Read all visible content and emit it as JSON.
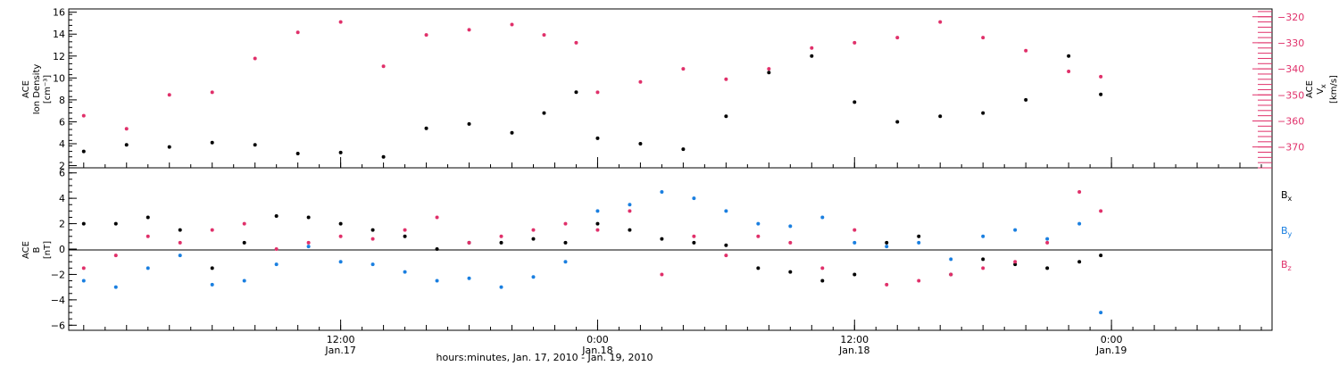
{
  "chart_data": [
    {
      "type": "scatter",
      "panel": "top",
      "ylabel_lines": [
        "ACE",
        "Ion Density",
        "[cm⁻³]"
      ],
      "ylim": [
        1.8,
        16.3
      ],
      "yticks": [
        2,
        4,
        6,
        8,
        10,
        12,
        14,
        16
      ],
      "y2label_lines": [
        "ACE",
        "V",
        "[km/s]"
      ],
      "y2label_sub": "x",
      "y2lim": [
        -378,
        -317
      ],
      "y2ticks": [
        -320,
        -330,
        -340,
        -350,
        -360,
        -370
      ],
      "x": [
        0,
        2,
        4,
        6,
        8,
        10,
        12,
        14,
        16,
        18,
        20,
        21.5,
        23,
        24,
        26,
        28,
        30,
        32,
        34,
        36,
        38,
        40,
        42,
        44,
        46,
        47.5
      ],
      "xlim": [
        -0.7,
        55.5
      ],
      "series": [
        {
          "name": "",
          "axis": "left",
          "color": "#000000",
          "values": [
            3.3,
            3.9,
            3.7,
            4.1,
            3.9,
            3.1,
            3.2,
            2.8,
            5.4,
            5.8,
            5.0,
            6.8,
            8.7,
            4.5,
            4.0,
            3.5,
            6.5,
            10.5,
            12.0,
            7.8,
            6.0,
            6.5,
            6.8,
            8.0,
            12.0,
            8.5
          ]
        },
        {
          "name": "",
          "axis": "right",
          "color": "#e0306a",
          "values": [
            -358,
            -363,
            -350,
            -349,
            -336,
            -326,
            -322,
            -339,
            -327,
            -325,
            -323,
            -327,
            -330,
            -349,
            -345,
            -340,
            -344,
            -340,
            -332,
            -330,
            -328,
            -322,
            -328,
            -333,
            -341,
            -343
          ]
        }
      ]
    },
    {
      "type": "scatter",
      "panel": "bottom",
      "ylabel_lines": [
        "ACE",
        "B",
        "[nT]"
      ],
      "ylim": [
        -6.4,
        6.4
      ],
      "yticks": [
        6,
        4,
        2,
        0,
        -2,
        -4,
        -6
      ],
      "x": [
        0,
        1.5,
        3,
        4.5,
        6,
        7.5,
        9,
        10.5,
        12,
        13.5,
        15,
        16.5,
        18,
        19.5,
        21,
        22.5,
        24,
        25.5,
        27,
        28.5,
        30,
        31.5,
        33,
        34.5,
        36,
        37.5,
        39,
        40.5,
        42,
        43.5,
        45,
        46.5,
        47.5
      ],
      "xlim": [
        -0.7,
        55.5
      ],
      "series": [
        {
          "name": "B",
          "sub": "x",
          "color": "#000000",
          "values": [
            2.0,
            2.0,
            2.5,
            1.5,
            -1.5,
            0.5,
            2.6,
            2.5,
            2.0,
            1.5,
            1.0,
            0.0,
            0.5,
            0.5,
            0.8,
            0.5,
            2.0,
            1.5,
            0.8,
            0.5,
            0.3,
            -1.5,
            -1.8,
            -2.5,
            -2.0,
            0.5,
            1.0,
            -2.0,
            -0.8,
            -1.2,
            -1.5,
            -1.0,
            -0.5
          ]
        },
        {
          "name": "B",
          "sub": "y",
          "color": "#1a7fe0",
          "values": [
            -2.5,
            -3.0,
            -1.5,
            -0.5,
            -2.8,
            -2.5,
            -1.2,
            0.2,
            -1.0,
            -1.2,
            -1.8,
            -2.5,
            -2.3,
            -3.0,
            -2.2,
            -1.0,
            3.0,
            3.5,
            4.5,
            4.0,
            3.0,
            2.0,
            1.8,
            2.5,
            0.5,
            0.2,
            0.5,
            -0.8,
            1.0,
            1.5,
            0.8,
            2.0,
            -5.0
          ]
        },
        {
          "name": "B",
          "sub": "z",
          "color": "#e0306a",
          "values": [
            -1.5,
            -0.5,
            1.0,
            0.5,
            1.5,
            2.0,
            0.0,
            0.5,
            1.0,
            0.8,
            1.5,
            2.5,
            0.5,
            1.0,
            1.5,
            2.0,
            1.5,
            3.0,
            -2.0,
            1.0,
            -0.5,
            1.0,
            0.5,
            -1.5,
            1.5,
            -2.8,
            -2.5,
            -2.0,
            -1.5,
            -1.0,
            0.5,
            4.5,
            3.0
          ]
        }
      ]
    }
  ],
  "x_axis": {
    "ticks": [
      {
        "x": 12,
        "time": "12:00",
        "date": "Jan.17"
      },
      {
        "x": 24,
        "time": "0:00",
        "date": "Jan.18"
      },
      {
        "x": 36,
        "time": "12:00",
        "date": "Jan.18"
      },
      {
        "x": 48,
        "time": "0:00",
        "date": "Jan.19"
      }
    ],
    "label": "hours:minutes, Jan. 17, 2010 - Jan. 19, 2010"
  },
  "legend": {
    "bx_name": "B",
    "bx_sub": "x",
    "by_name": "B",
    "by_sub": "y",
    "bz_name": "B",
    "bz_sub": "z"
  }
}
